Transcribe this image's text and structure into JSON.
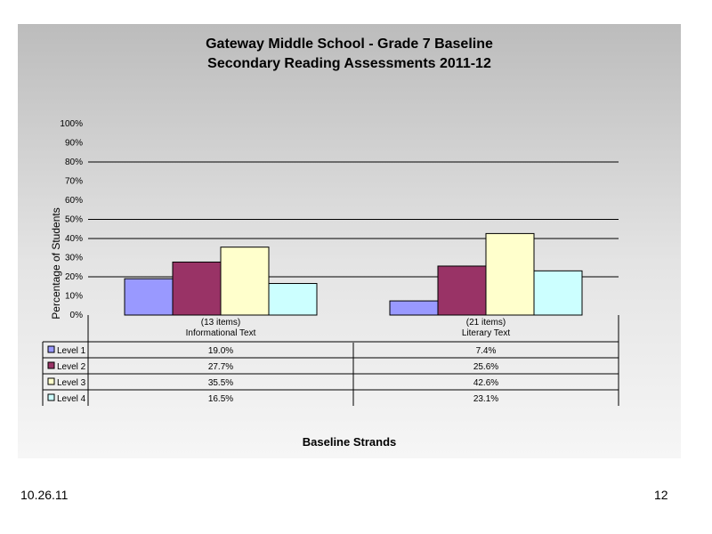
{
  "footer": {
    "date": "10.26.11",
    "page": "12"
  },
  "colors": {
    "level1": "#9999ff",
    "level2": "#993366",
    "level3": "#ffffcc",
    "level4": "#ccffff"
  },
  "chart_data": {
    "type": "bar",
    "title": "Gateway Middle School - Grade 7 Baseline",
    "subtitle": "Secondary Reading Assessments 2011-12",
    "xlabel": "Baseline Strands",
    "ylabel": "Percentage of Students",
    "ylim": [
      0,
      100
    ],
    "yticks": [
      "0%",
      "10%",
      "20%",
      "30%",
      "40%",
      "50%",
      "60%",
      "70%",
      "80%",
      "90%",
      "100%"
    ],
    "categories": [
      {
        "items": "(13 items)",
        "name": "Informational Text"
      },
      {
        "items": "(21 items)",
        "name": "Literary Text"
      }
    ],
    "series": [
      {
        "name": "Level 1",
        "values": [
          19.0,
          7.4
        ],
        "labels": [
          "19.0%",
          "7.4%"
        ],
        "color": "#9999ff"
      },
      {
        "name": "Level 2",
        "values": [
          27.7,
          25.6
        ],
        "labels": [
          "27.7%",
          "25.6%"
        ],
        "color": "#993366"
      },
      {
        "name": "Level 3",
        "values": [
          35.5,
          42.6
        ],
        "labels": [
          "35.5%",
          "42.6%"
        ],
        "color": "#ffffcc"
      },
      {
        "name": "Level 4",
        "values": [
          16.5,
          23.1
        ],
        "labels": [
          "16.5%",
          "23.1%"
        ],
        "color": "#ccffff"
      }
    ],
    "gridlines": [
      20,
      40,
      50,
      80
    ],
    "legend": "data-table"
  }
}
